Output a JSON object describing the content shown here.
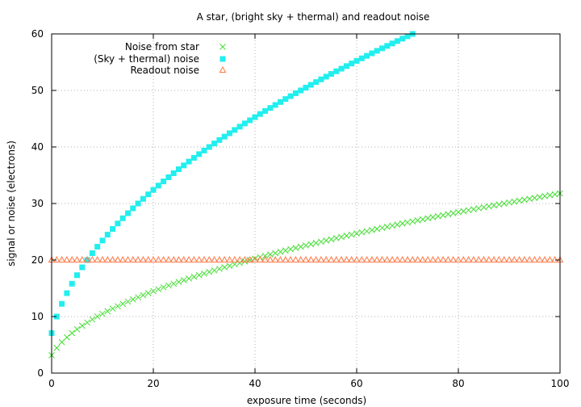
{
  "chart_data": {
    "type": "scatter",
    "title": "A star, (bright sky + thermal) and readout noise",
    "xlabel": "exposure time (seconds)",
    "ylabel": "signal or noise (electrons)",
    "xlim": [
      0,
      100
    ],
    "ylim": [
      0,
      60
    ],
    "xticks": [
      "0",
      "20",
      "40",
      "60",
      "80",
      "100"
    ],
    "yticks": [
      "0",
      "10",
      "20",
      "30",
      "40",
      "50",
      "60"
    ],
    "grid": true,
    "legend_position": "top-left",
    "x": [
      0,
      1,
      2,
      3,
      4,
      5,
      6,
      7,
      8,
      9,
      10,
      11,
      12,
      13,
      14,
      15,
      16,
      17,
      18,
      19,
      20,
      21,
      22,
      23,
      24,
      25,
      26,
      27,
      28,
      29,
      30,
      31,
      32,
      33,
      34,
      35,
      36,
      37,
      38,
      39,
      40,
      41,
      42,
      43,
      44,
      45,
      46,
      47,
      48,
      49,
      50,
      51,
      52,
      53,
      54,
      55,
      56,
      57,
      58,
      59,
      60,
      61,
      62,
      63,
      64,
      65,
      66,
      67,
      68,
      69,
      70,
      71,
      72,
      73,
      74,
      75,
      76,
      77,
      78,
      79,
      80,
      81,
      82,
      83,
      84,
      85,
      86,
      87,
      88,
      89,
      90,
      91,
      92,
      93,
      94,
      95,
      96,
      97,
      98,
      99,
      100
    ],
    "series": [
      {
        "name": "Noise from star",
        "marker": "x",
        "color": "#44dd33",
        "values": [
          3.16,
          4.47,
          5.48,
          6.32,
          7.07,
          7.75,
          8.37,
          8.94,
          9.49,
          10.0,
          10.49,
          10.95,
          11.4,
          11.83,
          12.25,
          12.65,
          13.04,
          13.42,
          13.78,
          14.14,
          14.49,
          14.83,
          15.17,
          15.49,
          15.81,
          16.12,
          16.43,
          16.73,
          17.03,
          17.32,
          17.61,
          17.89,
          18.17,
          18.44,
          18.71,
          18.97,
          19.24,
          19.49,
          19.75,
          20.0,
          20.25,
          20.49,
          20.74,
          20.98,
          21.21,
          21.45,
          21.68,
          21.91,
          22.14,
          22.36,
          22.58,
          22.8,
          23.02,
          23.24,
          23.45,
          23.66,
          23.87,
          24.08,
          24.29,
          24.49,
          24.7,
          24.9,
          25.1,
          25.3,
          25.5,
          25.69,
          25.88,
          26.08,
          26.27,
          26.46,
          26.65,
          26.83,
          27.02,
          27.2,
          27.39,
          27.57,
          27.75,
          27.93,
          28.11,
          28.28,
          28.46,
          28.64,
          28.81,
          28.98,
          29.15,
          29.33,
          29.5,
          29.66,
          29.83,
          30.0,
          30.17,
          30.33,
          30.5,
          30.66,
          30.82,
          30.98,
          31.14,
          31.3,
          31.46,
          31.62,
          31.78
        ]
      },
      {
        "name": "(Sky + thermal) noise",
        "marker": "square",
        "color": "#22eeee",
        "values": [
          7.07,
          10.0,
          12.25,
          14.14,
          15.81,
          17.32,
          18.71,
          20.0,
          21.21,
          22.36,
          23.45,
          24.49,
          25.5,
          26.46,
          27.39,
          28.28,
          29.15,
          30.0,
          30.82,
          31.62,
          32.4,
          33.17,
          33.91,
          34.64,
          35.36,
          36.06,
          36.74,
          37.42,
          38.08,
          38.73,
          39.37,
          40.0,
          40.62,
          41.23,
          41.83,
          42.43,
          43.01,
          43.59,
          44.16,
          44.72,
          45.28,
          45.83,
          46.37,
          46.9,
          47.43,
          47.96,
          48.48,
          48.99,
          49.5,
          50.0,
          50.5,
          50.99,
          51.48,
          51.96,
          52.44,
          52.92,
          53.39,
          53.85,
          54.31,
          54.77,
          55.23,
          55.68,
          56.12,
          56.57,
          57.01,
          57.45,
          57.88,
          58.31,
          58.74,
          59.16,
          59.58,
          60.0
        ]
      },
      {
        "name": "Readout noise",
        "marker": "triangle",
        "color": "#ff7744",
        "values": [
          20,
          20,
          20,
          20,
          20,
          20,
          20,
          20,
          20,
          20,
          20,
          20,
          20,
          20,
          20,
          20,
          20,
          20,
          20,
          20,
          20,
          20,
          20,
          20,
          20,
          20,
          20,
          20,
          20,
          20,
          20,
          20,
          20,
          20,
          20,
          20,
          20,
          20,
          20,
          20,
          20,
          20,
          20,
          20,
          20,
          20,
          20,
          20,
          20,
          20,
          20,
          20,
          20,
          20,
          20,
          20,
          20,
          20,
          20,
          20,
          20,
          20,
          20,
          20,
          20,
          20,
          20,
          20,
          20,
          20,
          20,
          20,
          20,
          20,
          20,
          20,
          20,
          20,
          20,
          20,
          20,
          20,
          20,
          20,
          20,
          20,
          20,
          20,
          20,
          20,
          20,
          20,
          20,
          20,
          20,
          20,
          20,
          20,
          20,
          20,
          20
        ]
      }
    ]
  }
}
